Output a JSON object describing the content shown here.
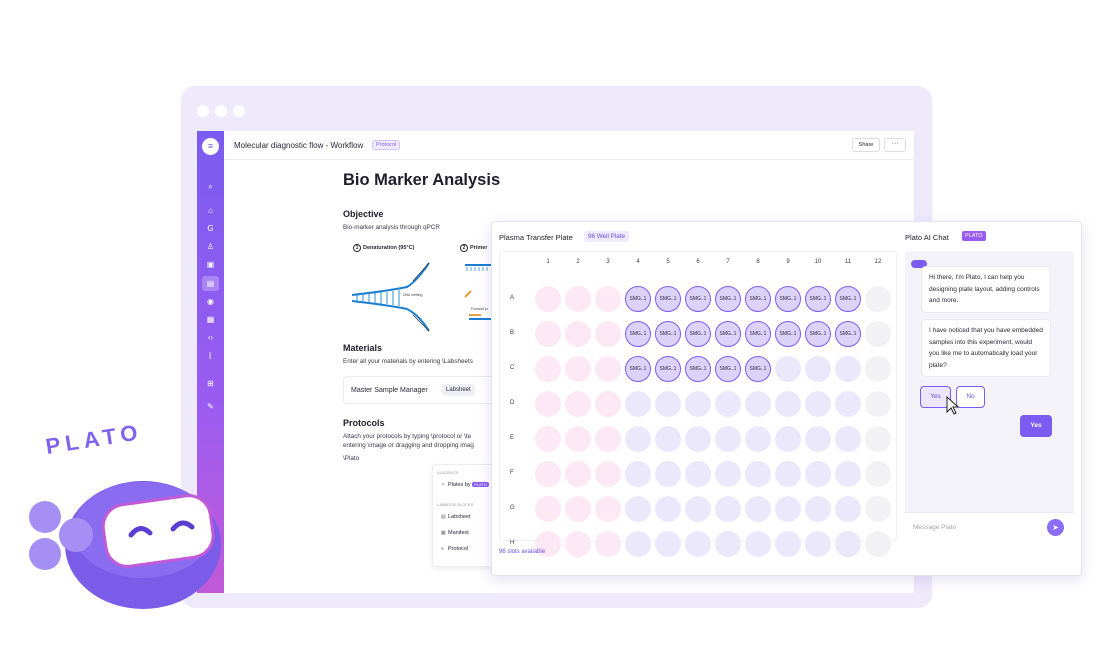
{
  "document": {
    "window_title": "Molecular diagnostic flow - Workflow",
    "tag": "Protocol",
    "share_label": "Share",
    "more_label": "···",
    "title": "Bio Marker Analysis",
    "objective_heading": "Objective",
    "objective_text": "Bio-marker analysis through qPCR",
    "step1_num": "1",
    "step1_label": "Denaturation (95°C)",
    "step1_note": "DNA melting",
    "step2_num": "2",
    "step2_label": "Primer",
    "step2_note": "Forward pr",
    "materials_heading": "Materials",
    "materials_text": "Enter all your materials by entering \\Labsheets",
    "materials_box_label": "Master Sample Manager",
    "materials_box_pill": "Labsheet",
    "protocols_heading": "Protocols",
    "protocols_text_1": "Attach your protocols by typing \\protocol or \\te",
    "protocols_text_2": "entering \\image or dragging and dropping imag",
    "protocols_text_3": "\\Plato"
  },
  "slash_menu": {
    "ai_heading": "AI AGENTS",
    "plates_item": "Plates by",
    "plates_tag": "PLATO",
    "blocks_heading": "LABBOOK BLOCKS",
    "labsheet_item": "Labsheet",
    "manifest_item": "Manifest",
    "protocol_item": "Protocol"
  },
  "plate": {
    "title": "Plasma Transfer Plate",
    "tag": "96 Well Plate",
    "columns": [
      "1",
      "2",
      "3",
      "4",
      "5",
      "6",
      "7",
      "8",
      "9",
      "10",
      "11",
      "12"
    ],
    "rows": [
      "A",
      "B",
      "C",
      "D",
      "E",
      "F",
      "G",
      "H"
    ],
    "sample_label": "SMG..1",
    "samples_per_row": [
      8,
      8,
      5,
      0,
      0,
      0,
      0,
      0
    ],
    "slots_text": "96 slots available",
    "colors": {
      "pink": "#fde8f6",
      "lavender": "#ece8fb",
      "grey": "#f2f2f4",
      "sample": "#dcd3fb",
      "accent": "#7b5cf0"
    }
  },
  "chat": {
    "title": "Plato AI Chat",
    "tag": "PLATO",
    "msg1": "Hi there, I'm Plato, I can help you designing plate layout, adding controls and more.",
    "msg2": "I have noticed that you have embedded samples into this experiment, would you like me to automatically load your plate?",
    "yes_label": "Yes",
    "no_label": "No",
    "user_reply": "Yes",
    "input_placeholder": "Message Plato"
  },
  "mascot": {
    "word": "PLATO"
  },
  "sidebar": {
    "icons": [
      "search-icon",
      "home-icon",
      "g-icon",
      "users-icon",
      "calendar-icon",
      "doc-icon",
      "location-icon",
      "grid-icon",
      "code-icon",
      "chart-icon",
      "apps-icon",
      "edit-icon"
    ]
  }
}
